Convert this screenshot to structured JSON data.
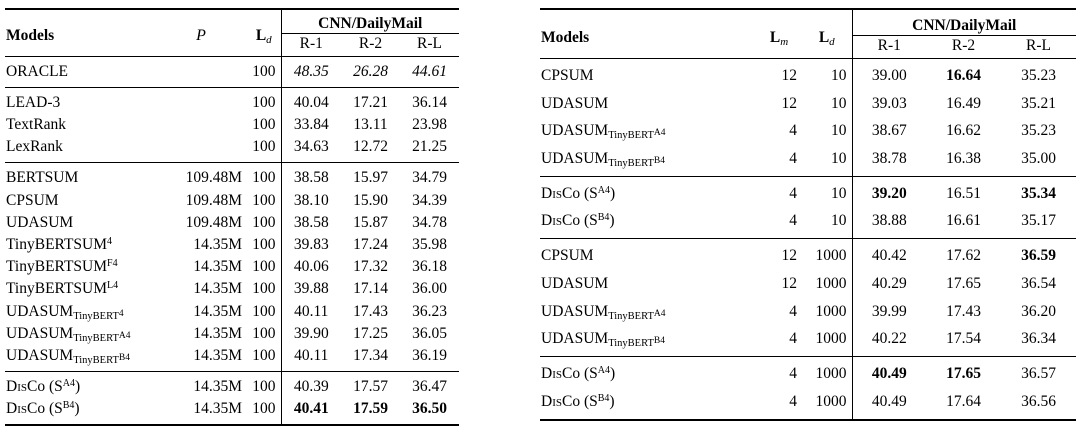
{
  "page": {
    "background": "#ffffff",
    "text_color": "#000000",
    "rule_color": "#000000"
  },
  "tables": [
    {
      "name": "left-table",
      "models_header": [
        [
          "b",
          "Models"
        ]
      ],
      "param_headers": [
        [
          [
            "sp",
            "P"
          ]
        ],
        [
          [
            "b",
            "L"
          ],
          [
            "isub",
            "d"
          ]
        ]
      ],
      "group_header": "CNN/DailyMail",
      "metric_headers": [
        "R-1",
        "R-2",
        "R-L"
      ],
      "groups": [
        {
          "rows": [
            {
              "model": [
                [
                  "t",
                  "ORACLE"
                ]
              ],
              "params": [
                "",
                "100"
              ],
              "metrics": [
                [
                  "48.35",
                  "i"
                ],
                [
                  "26.28",
                  "i"
                ],
                [
                  "44.61",
                  "i"
                ]
              ]
            }
          ]
        },
        {
          "rows": [
            {
              "model": [
                [
                  "t",
                  "LEAD-3"
                ]
              ],
              "params": [
                "",
                "100"
              ],
              "metrics": [
                [
                  "40.04"
                ],
                [
                  "17.21"
                ],
                [
                  "36.14"
                ]
              ]
            },
            {
              "model": [
                [
                  "t",
                  "TextRank"
                ]
              ],
              "params": [
                "",
                "100"
              ],
              "metrics": [
                [
                  "33.84"
                ],
                [
                  "13.11"
                ],
                [
                  "23.98"
                ]
              ]
            },
            {
              "model": [
                [
                  "t",
                  "LexRank"
                ]
              ],
              "params": [
                "",
                "100"
              ],
              "metrics": [
                [
                  "34.63"
                ],
                [
                  "12.72"
                ],
                [
                  "21.25"
                ]
              ]
            }
          ]
        },
        {
          "rows": [
            {
              "model": [
                [
                  "t",
                  "BERTSUM"
                ]
              ],
              "params": [
                "109.48M",
                "100"
              ],
              "metrics": [
                [
                  "38.58"
                ],
                [
                  "15.97"
                ],
                [
                  "34.79"
                ]
              ]
            },
            {
              "model": [
                [
                  "t",
                  "CPSUM"
                ]
              ],
              "params": [
                "109.48M",
                "100"
              ],
              "metrics": [
                [
                  "38.10"
                ],
                [
                  "15.90"
                ],
                [
                  "34.39"
                ]
              ]
            },
            {
              "model": [
                [
                  "t",
                  "UDASUM"
                ]
              ],
              "params": [
                "109.48M",
                "100"
              ],
              "metrics": [
                [
                  "38.58"
                ],
                [
                  "15.87"
                ],
                [
                  "34.78"
                ]
              ]
            },
            {
              "model": [
                [
                  "t",
                  "TinyBERTSUM"
                ],
                [
                  "sup",
                  "4"
                ]
              ],
              "params": [
                "14.35M",
                "100"
              ],
              "metrics": [
                [
                  "39.83"
                ],
                [
                  "17.24"
                ],
                [
                  "35.98"
                ]
              ]
            },
            {
              "model": [
                [
                  "t",
                  "TinyBERTSUM"
                ],
                [
                  "sup",
                  "F4"
                ]
              ],
              "params": [
                "14.35M",
                "100"
              ],
              "metrics": [
                [
                  "40.06"
                ],
                [
                  "17.32"
                ],
                [
                  "36.18"
                ]
              ]
            },
            {
              "model": [
                [
                  "t",
                  "TinyBERTSUM"
                ],
                [
                  "sup",
                  "L4"
                ]
              ],
              "params": [
                "14.35M",
                "100"
              ],
              "metrics": [
                [
                  "39.88"
                ],
                [
                  "17.14"
                ],
                [
                  "36.00"
                ]
              ]
            },
            {
              "model": [
                [
                  "t",
                  "UDASUM"
                ],
                [
                  "sub",
                  "TinyBERT"
                ],
                [
                  "ss",
                  "4"
                ]
              ],
              "params": [
                "14.35M",
                "100"
              ],
              "metrics": [
                [
                  "40.11"
                ],
                [
                  "17.43"
                ],
                [
                  "36.23"
                ]
              ]
            },
            {
              "model": [
                [
                  "t",
                  "UDASUM"
                ],
                [
                  "sub",
                  "TinyBERT"
                ],
                [
                  "ss",
                  "A4"
                ]
              ],
              "params": [
                "14.35M",
                "100"
              ],
              "metrics": [
                [
                  "39.90"
                ],
                [
                  "17.25"
                ],
                [
                  "36.05"
                ]
              ]
            },
            {
              "model": [
                [
                  "t",
                  "UDASUM"
                ],
                [
                  "sub",
                  "TinyBERT"
                ],
                [
                  "ss",
                  "B4"
                ]
              ],
              "params": [
                "14.35M",
                "100"
              ],
              "metrics": [
                [
                  "40.11"
                ],
                [
                  "17.34"
                ],
                [
                  "36.19"
                ]
              ]
            }
          ]
        },
        {
          "rows": [
            {
              "model": [
                [
                  "sc",
                  "Dis"
                ],
                [
                  "t",
                  "Co (S"
                ],
                [
                  "sup",
                  "A4"
                ],
                [
                  "t",
                  ")"
                ]
              ],
              "params": [
                "14.35M",
                "100"
              ],
              "metrics": [
                [
                  "40.39"
                ],
                [
                  "17.57"
                ],
                [
                  "36.47"
                ]
              ]
            },
            {
              "model": [
                [
                  "sc",
                  "Dis"
                ],
                [
                  "t",
                  "Co (S"
                ],
                [
                  "sup",
                  "B4"
                ],
                [
                  "t",
                  ")"
                ]
              ],
              "params": [
                "14.35M",
                "100"
              ],
              "metrics": [
                [
                  "40.41",
                  "b"
                ],
                [
                  "17.59",
                  "b"
                ],
                [
                  "36.50",
                  "b"
                ]
              ]
            }
          ]
        }
      ]
    },
    {
      "name": "right-table",
      "models_header": [
        [
          "b",
          "Models"
        ]
      ],
      "param_headers": [
        [
          [
            "b",
            "L"
          ],
          [
            "isub",
            "m"
          ]
        ],
        [
          [
            "b",
            "L"
          ],
          [
            "isub",
            "d"
          ]
        ]
      ],
      "group_header": "CNN/DailyMail",
      "metric_headers": [
        "R-1",
        "R-2",
        "R-L"
      ],
      "groups": [
        {
          "rows": [
            {
              "model": [
                [
                  "t",
                  "CPSUM"
                ]
              ],
              "params": [
                "12",
                "10"
              ],
              "metrics": [
                [
                  "39.00"
                ],
                [
                  "16.64",
                  "b"
                ],
                [
                  "35.23"
                ]
              ]
            },
            {
              "model": [
                [
                  "t",
                  "UDASUM"
                ]
              ],
              "params": [
                "12",
                "10"
              ],
              "metrics": [
                [
                  "39.03"
                ],
                [
                  "16.49"
                ],
                [
                  "35.21"
                ]
              ]
            },
            {
              "model": [
                [
                  "t",
                  "UDASUM"
                ],
                [
                  "sub",
                  "TinyBERT"
                ],
                [
                  "ss",
                  "A4"
                ]
              ],
              "params": [
                "4",
                "10"
              ],
              "metrics": [
                [
                  "38.67"
                ],
                [
                  "16.62"
                ],
                [
                  "35.23"
                ]
              ]
            },
            {
              "model": [
                [
                  "t",
                  "UDASUM"
                ],
                [
                  "sub",
                  "TinyBERT"
                ],
                [
                  "ss",
                  "B4"
                ]
              ],
              "params": [
                "4",
                "10"
              ],
              "metrics": [
                [
                  "38.78"
                ],
                [
                  "16.38"
                ],
                [
                  "35.00"
                ]
              ]
            }
          ]
        },
        {
          "rows": [
            {
              "model": [
                [
                  "sc",
                  "Dis"
                ],
                [
                  "t",
                  "Co (S"
                ],
                [
                  "sup",
                  "A4"
                ],
                [
                  "t",
                  ")"
                ]
              ],
              "params": [
                "4",
                "10"
              ],
              "metrics": [
                [
                  "39.20",
                  "b"
                ],
                [
                  "16.51"
                ],
                [
                  "35.34",
                  "b"
                ]
              ]
            },
            {
              "model": [
                [
                  "sc",
                  "Dis"
                ],
                [
                  "t",
                  "Co (S"
                ],
                [
                  "sup",
                  "B4"
                ],
                [
                  "t",
                  ")"
                ]
              ],
              "params": [
                "4",
                "10"
              ],
              "metrics": [
                [
                  "38.88"
                ],
                [
                  "16.61"
                ],
                [
                  "35.17"
                ]
              ]
            }
          ]
        },
        {
          "rows": [
            {
              "model": [
                [
                  "t",
                  "CPSUM"
                ]
              ],
              "params": [
                "12",
                "1000"
              ],
              "metrics": [
                [
                  "40.42"
                ],
                [
                  "17.62"
                ],
                [
                  "36.59",
                  "b"
                ]
              ]
            },
            {
              "model": [
                [
                  "t",
                  "UDASUM"
                ]
              ],
              "params": [
                "12",
                "1000"
              ],
              "metrics": [
                [
                  "40.29"
                ],
                [
                  "17.65"
                ],
                [
                  "36.54"
                ]
              ]
            },
            {
              "model": [
                [
                  "t",
                  "UDASUM"
                ],
                [
                  "sub",
                  "TinyBERT"
                ],
                [
                  "ss",
                  "A4"
                ]
              ],
              "params": [
                "4",
                "1000"
              ],
              "metrics": [
                [
                  "39.99"
                ],
                [
                  "17.43"
                ],
                [
                  "36.20"
                ]
              ]
            },
            {
              "model": [
                [
                  "t",
                  "UDASUM"
                ],
                [
                  "sub",
                  "TinyBERT"
                ],
                [
                  "ss",
                  "B4"
                ]
              ],
              "params": [
                "4",
                "1000"
              ],
              "metrics": [
                [
                  "40.22"
                ],
                [
                  "17.54"
                ],
                [
                  "36.34"
                ]
              ]
            }
          ]
        },
        {
          "rows": [
            {
              "model": [
                [
                  "sc",
                  "Dis"
                ],
                [
                  "t",
                  "Co (S"
                ],
                [
                  "sup",
                  "A4"
                ],
                [
                  "t",
                  ")"
                ]
              ],
              "params": [
                "4",
                "1000"
              ],
              "metrics": [
                [
                  "40.49",
                  "b"
                ],
                [
                  "17.65",
                  "b"
                ],
                [
                  "36.57"
                ]
              ]
            },
            {
              "model": [
                [
                  "sc",
                  "Dis"
                ],
                [
                  "t",
                  "Co (S"
                ],
                [
                  "sup",
                  "B4"
                ],
                [
                  "t",
                  ")"
                ]
              ],
              "params": [
                "4",
                "1000"
              ],
              "metrics": [
                [
                  "40.49"
                ],
                [
                  "17.64"
                ],
                [
                  "36.56"
                ]
              ]
            }
          ]
        }
      ]
    }
  ]
}
